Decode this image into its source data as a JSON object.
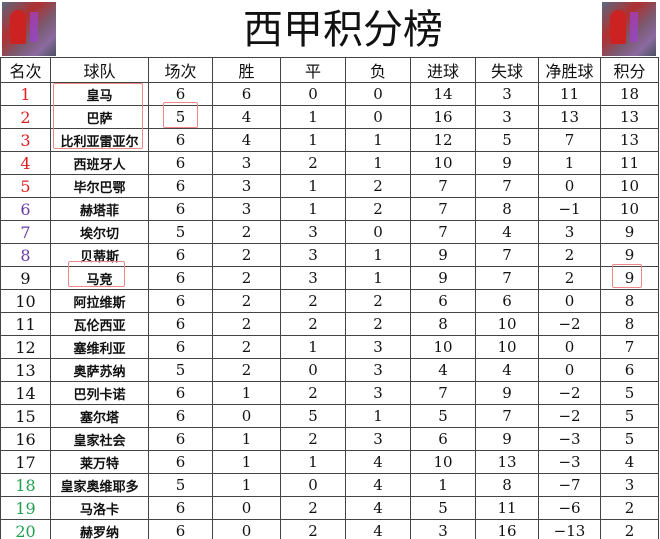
{
  "title": "西甲积分榜",
  "headers": [
    "名次",
    "球队",
    "场次",
    "胜",
    "平",
    "负",
    "进球",
    "失球",
    "净胜球",
    "积分"
  ],
  "colors": {
    "top": "#e02020",
    "europa": "#6a3aa8",
    "mid": "#111111",
    "relegation": "#20a050",
    "highlight": "#e88888"
  },
  "rows": [
    [
      "1",
      "皇马",
      "6",
      "6",
      "0",
      "0",
      "14",
      "3",
      "11",
      "18"
    ],
    [
      "2",
      "巴萨",
      "5",
      "4",
      "1",
      "0",
      "16",
      "3",
      "13",
      "13"
    ],
    [
      "3",
      "比利亚雷亚尔",
      "6",
      "4",
      "1",
      "1",
      "12",
      "5",
      "7",
      "13"
    ],
    [
      "4",
      "西班牙人",
      "6",
      "3",
      "2",
      "1",
      "10",
      "9",
      "1",
      "11"
    ],
    [
      "5",
      "毕尔巴鄂",
      "6",
      "3",
      "1",
      "2",
      "7",
      "7",
      "0",
      "10"
    ],
    [
      "6",
      "赫塔菲",
      "6",
      "3",
      "1",
      "2",
      "7",
      "8",
      "−1",
      "10"
    ],
    [
      "7",
      "埃尔切",
      "5",
      "2",
      "3",
      "0",
      "7",
      "4",
      "3",
      "9"
    ],
    [
      "8",
      "贝蒂斯",
      "6",
      "2",
      "3",
      "1",
      "9",
      "7",
      "2",
      "9"
    ],
    [
      "9",
      "马竞",
      "6",
      "2",
      "3",
      "1",
      "9",
      "7",
      "2",
      "9"
    ],
    [
      "10",
      "阿拉维斯",
      "6",
      "2",
      "2",
      "2",
      "6",
      "6",
      "0",
      "8"
    ],
    [
      "11",
      "瓦伦西亚",
      "6",
      "2",
      "2",
      "2",
      "8",
      "10",
      "−2",
      "8"
    ],
    [
      "12",
      "塞维利亚",
      "6",
      "2",
      "1",
      "3",
      "10",
      "10",
      "0",
      "7"
    ],
    [
      "13",
      "奥萨苏纳",
      "5",
      "2",
      "0",
      "3",
      "4",
      "4",
      "0",
      "6"
    ],
    [
      "14",
      "巴列卡诺",
      "6",
      "1",
      "2",
      "3",
      "7",
      "9",
      "−2",
      "5"
    ],
    [
      "15",
      "塞尔塔",
      "6",
      "0",
      "5",
      "1",
      "5",
      "7",
      "−2",
      "5"
    ],
    [
      "16",
      "皇家社会",
      "6",
      "1",
      "2",
      "3",
      "6",
      "9",
      "−3",
      "5"
    ],
    [
      "17",
      "莱万特",
      "6",
      "1",
      "1",
      "4",
      "10",
      "13",
      "−3",
      "4"
    ],
    [
      "18",
      "皇家奥维耶多",
      "5",
      "1",
      "0",
      "4",
      "1",
      "8",
      "−7",
      "3"
    ],
    [
      "19",
      "马洛卡",
      "6",
      "0",
      "2",
      "4",
      "5",
      "11",
      "−6",
      "2"
    ],
    [
      "20",
      "赫罗纳",
      "6",
      "0",
      "2",
      "4",
      "3",
      "16",
      "−13",
      "2"
    ]
  ]
}
